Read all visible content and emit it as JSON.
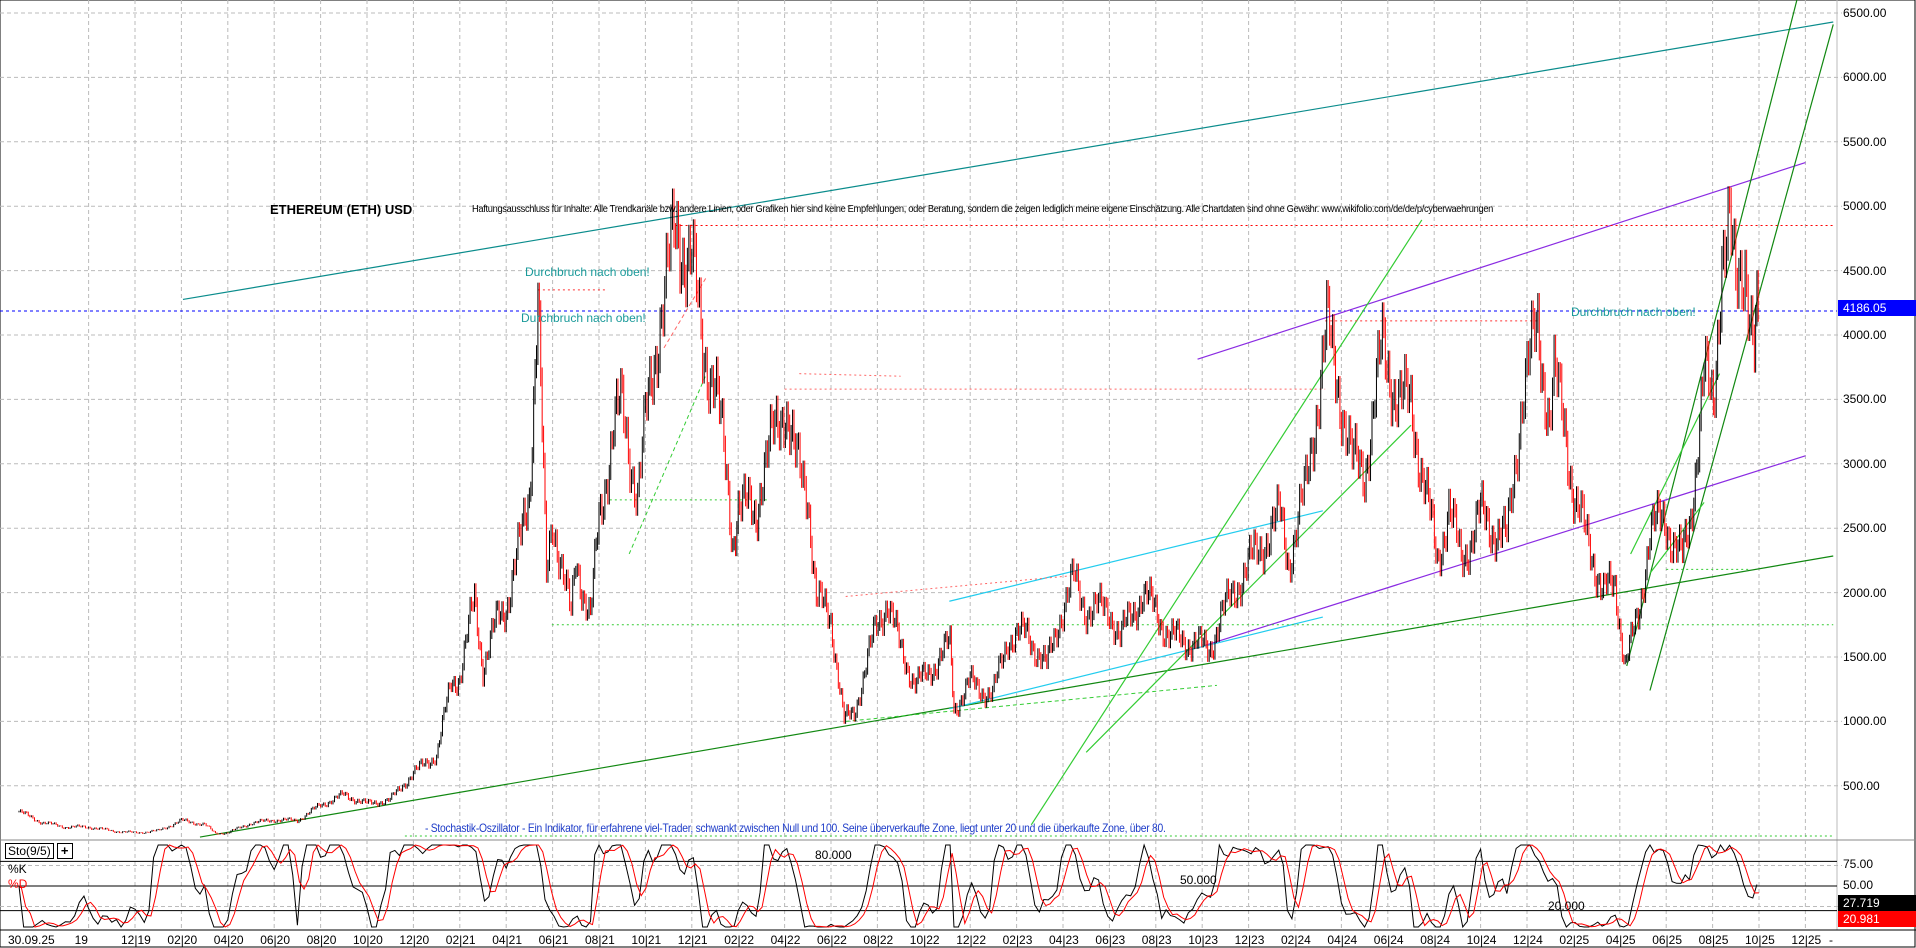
{
  "chart_data": {
    "type": "candlestick",
    "title": "ETHEREUM (ETH) USD",
    "disclaimer": "Haftungsausschluss für Inhalte: Alle Trendkanäle bzw. andere Linien, oder Grafiken hier sind keine Empfehlungen, oder Beratung, sondern die zeigen lediglich meine eigene Einschätzung. Alle Chartdaten sind ohne Gewähr.  www.wikifolio.com/de/de/p/cyberwaehrungen",
    "ylim": [
      0,
      6600
    ],
    "yticks": [
      "6500.00",
      "6000.00",
      "5500.00",
      "5000.00",
      "4500.00",
      "4000.00",
      "3500.00",
      "3000.00",
      "2500.00",
      "2000.00",
      "1500.00",
      "1000.00",
      "500.00"
    ],
    "ytick_values": [
      6500,
      6000,
      5500,
      5000,
      4500,
      4000,
      3500,
      3000,
      2500,
      2000,
      1500,
      1000,
      500
    ],
    "last_price": "4186.05",
    "last_price_color": "#0000ff",
    "grid": true,
    "up_color": "#000000",
    "down_color": "#ff0000",
    "xticks": [
      "30.09.25",
      "19",
      "12|19",
      "02|20",
      "04|20",
      "06|20",
      "08|20",
      "10|20",
      "12|20",
      "02|21",
      "04|21",
      "06|21",
      "08|21",
      "10|21",
      "12|21",
      "02|22",
      "04|22",
      "06|22",
      "08|22",
      "10|22",
      "12|22",
      "02|23",
      "04|23",
      "06|23",
      "08|23",
      "10|23",
      "12|23",
      "02|24",
      "04|24",
      "06|24",
      "08|24",
      "10|24",
      "12|24",
      "02|25",
      "04|25",
      "06|25",
      "08|25",
      "10|25",
      "12|25",
      "-"
    ],
    "price": [
      [
        "2019-07-01",
        300
      ],
      [
        "2019-08-01",
        215
      ],
      [
        "2019-09-01",
        180
      ],
      [
        "2019-10-01",
        180
      ],
      [
        "2019-11-01",
        150
      ],
      [
        "2019-12-01",
        135
      ],
      [
        "2020-01-01",
        150
      ],
      [
        "2020-02-01",
        230
      ],
      [
        "2020-03-01",
        200
      ],
      [
        "2020-03-15",
        130
      ],
      [
        "2020-04-01",
        135
      ],
      [
        "2020-05-01",
        210
      ],
      [
        "2020-06-01",
        235
      ],
      [
        "2020-07-01",
        230
      ],
      [
        "2020-08-01",
        350
      ],
      [
        "2020-09-01",
        430
      ],
      [
        "2020-10-01",
        360
      ],
      [
        "2020-11-01",
        390
      ],
      [
        "2020-12-01",
        600
      ],
      [
        "2021-01-01",
        740
      ],
      [
        "2021-01-20",
        1300
      ],
      [
        "2021-02-01",
        1350
      ],
      [
        "2021-02-20",
        1950
      ],
      [
        "2021-03-01",
        1420
      ],
      [
        "2021-03-20",
        1800
      ],
      [
        "2021-04-01",
        1900
      ],
      [
        "2021-04-20",
        2400
      ],
      [
        "2021-05-01",
        2800
      ],
      [
        "2021-05-12",
        4300
      ],
      [
        "2021-05-23",
        2100
      ],
      [
        "2021-06-01",
        2600
      ],
      [
        "2021-06-25",
        1800
      ],
      [
        "2021-07-01",
        2250
      ],
      [
        "2021-07-20",
        1800
      ],
      [
        "2021-08-01",
        2550
      ],
      [
        "2021-08-20",
        3300
      ],
      [
        "2021-09-01",
        3430
      ],
      [
        "2021-09-21",
        2750
      ],
      [
        "2021-10-01",
        3300
      ],
      [
        "2021-10-20",
        4150
      ],
      [
        "2021-11-10",
        4800
      ],
      [
        "2021-12-01",
        4600
      ],
      [
        "2021-12-15",
        3850
      ],
      [
        "2022-01-01",
        3700
      ],
      [
        "2022-01-24",
        2400
      ],
      [
        "2022-02-01",
        2700
      ],
      [
        "2022-02-24",
        2600
      ],
      [
        "2022-03-01",
        2900
      ],
      [
        "2022-04-02",
        3500
      ],
      [
        "2022-04-15",
        3000
      ],
      [
        "2022-05-01",
        2800
      ],
      [
        "2022-05-12",
        1950
      ],
      [
        "2022-06-01",
        1800
      ],
      [
        "2022-06-18",
        1000
      ],
      [
        "2022-07-01",
        1070
      ],
      [
        "2022-07-28",
        1700
      ],
      [
        "2022-08-14",
        1950
      ],
      [
        "2022-09-01",
        1550
      ],
      [
        "2022-09-20",
        1300
      ],
      [
        "2022-10-01",
        1330
      ],
      [
        "2022-11-05",
        1600
      ],
      [
        "2022-11-10",
        1100
      ],
      [
        "2022-12-01",
        1300
      ],
      [
        "2022-12-30",
        1200
      ],
      [
        "2023-01-20",
        1650
      ],
      [
        "2023-02-15",
        1680
      ],
      [
        "2023-03-10",
        1420
      ],
      [
        "2023-03-25",
        1780
      ],
      [
        "2023-04-15",
        2100
      ],
      [
        "2023-05-01",
        1870
      ],
      [
        "2023-06-01",
        1870
      ],
      [
        "2023-06-15",
        1650
      ],
      [
        "2023-07-14",
        2000
      ],
      [
        "2023-08-01",
        1850
      ],
      [
        "2023-08-20",
        1650
      ],
      [
        "2023-09-15",
        1620
      ],
      [
        "2023-10-10",
        1560
      ],
      [
        "2023-10-25",
        1800
      ],
      [
        "2023-11-15",
        2050
      ],
      [
        "2023-12-10",
        2300
      ],
      [
        "2024-01-12",
        2600
      ],
      [
        "2024-01-23",
        2250
      ],
      [
        "2024-02-15",
        2800
      ],
      [
        "2024-03-12",
        4050
      ],
      [
        "2024-04-01",
        3500
      ],
      [
        "2024-04-15",
        3000
      ],
      [
        "2024-05-01",
        2950
      ],
      [
        "2024-05-24",
        3900
      ],
      [
        "2024-06-15",
        3500
      ],
      [
        "2024-07-01",
        3450
      ],
      [
        "2024-08-05",
        2250
      ],
      [
        "2024-08-20",
        2650
      ],
      [
        "2024-09-06",
        2250
      ],
      [
        "2024-10-01",
        2600
      ],
      [
        "2024-11-05",
        2400
      ],
      [
        "2024-11-25",
        3550
      ],
      [
        "2024-12-15",
        4050
      ],
      [
        "2024-12-30",
        3350
      ],
      [
        "2025-01-06",
        3650
      ],
      [
        "2025-01-20",
        3300
      ],
      [
        "2025-02-03",
        2700
      ],
      [
        "2025-02-25",
        2300
      ],
      [
        "2025-03-10",
        2000
      ],
      [
        "2025-03-25",
        2050
      ],
      [
        "2025-04-08",
        1450
      ],
      [
        "2025-04-25",
        1800
      ],
      [
        "2025-05-10",
        2500
      ],
      [
        "2025-06-01",
        2550
      ],
      [
        "2025-06-22",
        2250
      ],
      [
        "2025-07-01",
        2500
      ],
      [
        "2025-07-20",
        3700
      ],
      [
        "2025-08-02",
        3400
      ],
      [
        "2025-08-13",
        4700
      ],
      [
        "2025-08-23",
        4800
      ],
      [
        "2025-09-01",
        4300
      ],
      [
        "2025-09-13",
        4650
      ],
      [
        "2025-09-25",
        3850
      ],
      [
        "2025-09-30",
        4186
      ]
    ],
    "trendlines": [
      {
        "color": "#0a8c8c",
        "style": "solid",
        "from": [
          "2020-02-03",
          4276
        ],
        "to": [
          "2026-01-07",
          6430
        ]
      },
      {
        "color": "#118811",
        "style": "solid",
        "from": [
          "2020-02-25",
          102
        ],
        "to": [
          "2026-01-07",
          2284
        ]
      },
      {
        "color": "#8a2be2",
        "style": "solid",
        "from": [
          "2023-09-25",
          3812
        ],
        "to": [
          "2025-12-01",
          5339
        ]
      },
      {
        "color": "#8a2be2",
        "style": "solid",
        "from": [
          "2023-10-05",
          1591
        ],
        "to": [
          "2025-12-01",
          3062
        ]
      },
      {
        "color": "#22ccee",
        "style": "solid",
        "from": [
          "2022-11-04",
          1933
        ],
        "to": [
          "2024-03-07",
          2635
        ]
      },
      {
        "color": "#22ccee",
        "style": "solid",
        "from": [
          "2022-11-04",
          1098
        ],
        "to": [
          "2024-03-07",
          1810
        ]
      },
      {
        "color": "#33cc33",
        "style": "solid",
        "from": [
          "2023-02-20",
          197
        ],
        "to": [
          "2024-07-15",
          4893
        ]
      },
      {
        "color": "#33cc33",
        "style": "solid",
        "from": [
          "2023-05-01",
          760
        ],
        "to": [
          "2024-07-01",
          3300
        ]
      },
      {
        "color": "#118811",
        "style": "solid",
        "from": [
          "2025-05-10",
          1240
        ],
        "to": [
          "2026-01-07",
          6411
        ]
      },
      {
        "color": "#118811",
        "style": "solid",
        "from": [
          "2025-04-10",
          1430
        ],
        "to": [
          "2025-11-20",
          6601
        ]
      },
      {
        "color": "#33cc33",
        "style": "solid",
        "from": [
          "2025-04-15",
          2300
        ],
        "to": [
          "2025-08-10",
          3700
        ]
      },
      {
        "color": "#33cc33",
        "style": "solid",
        "from": [
          "2025-05-10",
          2150
        ],
        "to": [
          "2025-07-20",
          2700
        ]
      },
      {
        "color": "#33cc33",
        "style": "dashed",
        "from": [
          "2021-09-10",
          2300
        ],
        "to": [
          "2021-12-20",
          3700
        ]
      },
      {
        "color": "#33cc33",
        "style": "dashed",
        "from": [
          "2022-06-20",
          1000
        ],
        "to": [
          "2023-10-20",
          1280
        ]
      },
      {
        "color": "#ff6666",
        "style": "dashed",
        "from": [
          "2021-10-25",
          3900
        ],
        "to": [
          "2021-12-20",
          4450
        ]
      },
      {
        "color": "#ff0000",
        "style": "dotted",
        "from": [
          "2021-11-10",
          4850
        ],
        "to": [
          "2026-01-07",
          4850
        ]
      },
      {
        "color": "#ff6666",
        "style": "dotted",
        "from": [
          "2022-04-01",
          3580
        ],
        "to": [
          "2024-03-10",
          3580
        ]
      },
      {
        "color": "#ff3333",
        "style": "dotted",
        "from": [
          "2024-03-10",
          4110
        ],
        "to": [
          "2024-12-15",
          4110
        ]
      },
      {
        "color": "#ff6666",
        "style": "dotted",
        "from": [
          "2022-06-20",
          1970
        ],
        "to": [
          "2023-04-10",
          2130
        ]
      },
      {
        "color": "#ff6666",
        "style": "dotted",
        "from": [
          "2022-04-20",
          3700
        ],
        "to": [
          "2022-09-01",
          3680
        ]
      },
      {
        "color": "#ff3333",
        "style": "dotted",
        "from": [
          "2021-05-12",
          4350
        ],
        "to": [
          "2021-08-10",
          4350
        ]
      },
      {
        "color": "#33cc33",
        "style": "dotted",
        "from": [
          "2021-05-30",
          1750
        ],
        "to": [
          "2026-01-07",
          1750
        ]
      },
      {
        "color": "#33cc33",
        "style": "dotted",
        "from": [
          "2021-08-15",
          2720
        ],
        "to": [
          "2022-03-10",
          2720
        ]
      },
      {
        "color": "#33cc33",
        "style": "dotted",
        "from": [
          "2020-11-20",
          110
        ],
        "to": [
          "2026-01-07",
          110
        ]
      },
      {
        "color": "#33cc33",
        "style": "dotted",
        "from": [
          "2025-06-01",
          2180
        ],
        "to": [
          "2025-09-20",
          2180
        ]
      }
    ],
    "annotations": [
      {
        "text": "Durchbruch nach oben!",
        "at": [
          "2021-05-05",
          4430
        ]
      },
      {
        "text": "Durchbruch nach oben!",
        "at": [
          "2021-05-02",
          4070
        ]
      },
      {
        "text": "Durchbruch nach oben!",
        "at": [
          "2025-01-25",
          4100
        ]
      }
    ],
    "indicator": {
      "name": "Sto(9/5)",
      "k_label": "%K",
      "d_label": "%D",
      "k_color": "#000000",
      "d_color": "#ff0000",
      "description": "- Stochastik-Oszillator - Ein Indikator, für erfahrene viel-Trader, schwankt zwischen Null und 100. Seine überverkaufte Zone, liegt unter 20 und die überkaufte Zone, über 80.",
      "levels": [
        80,
        50,
        20
      ],
      "level_labels": [
        "80.000",
        "50.000",
        "20.000"
      ],
      "axis_labels": [
        "75.00",
        "50.00"
      ],
      "k_last": "27.719",
      "d_last": "20.981",
      "ylim": [
        0,
        100
      ]
    }
  }
}
